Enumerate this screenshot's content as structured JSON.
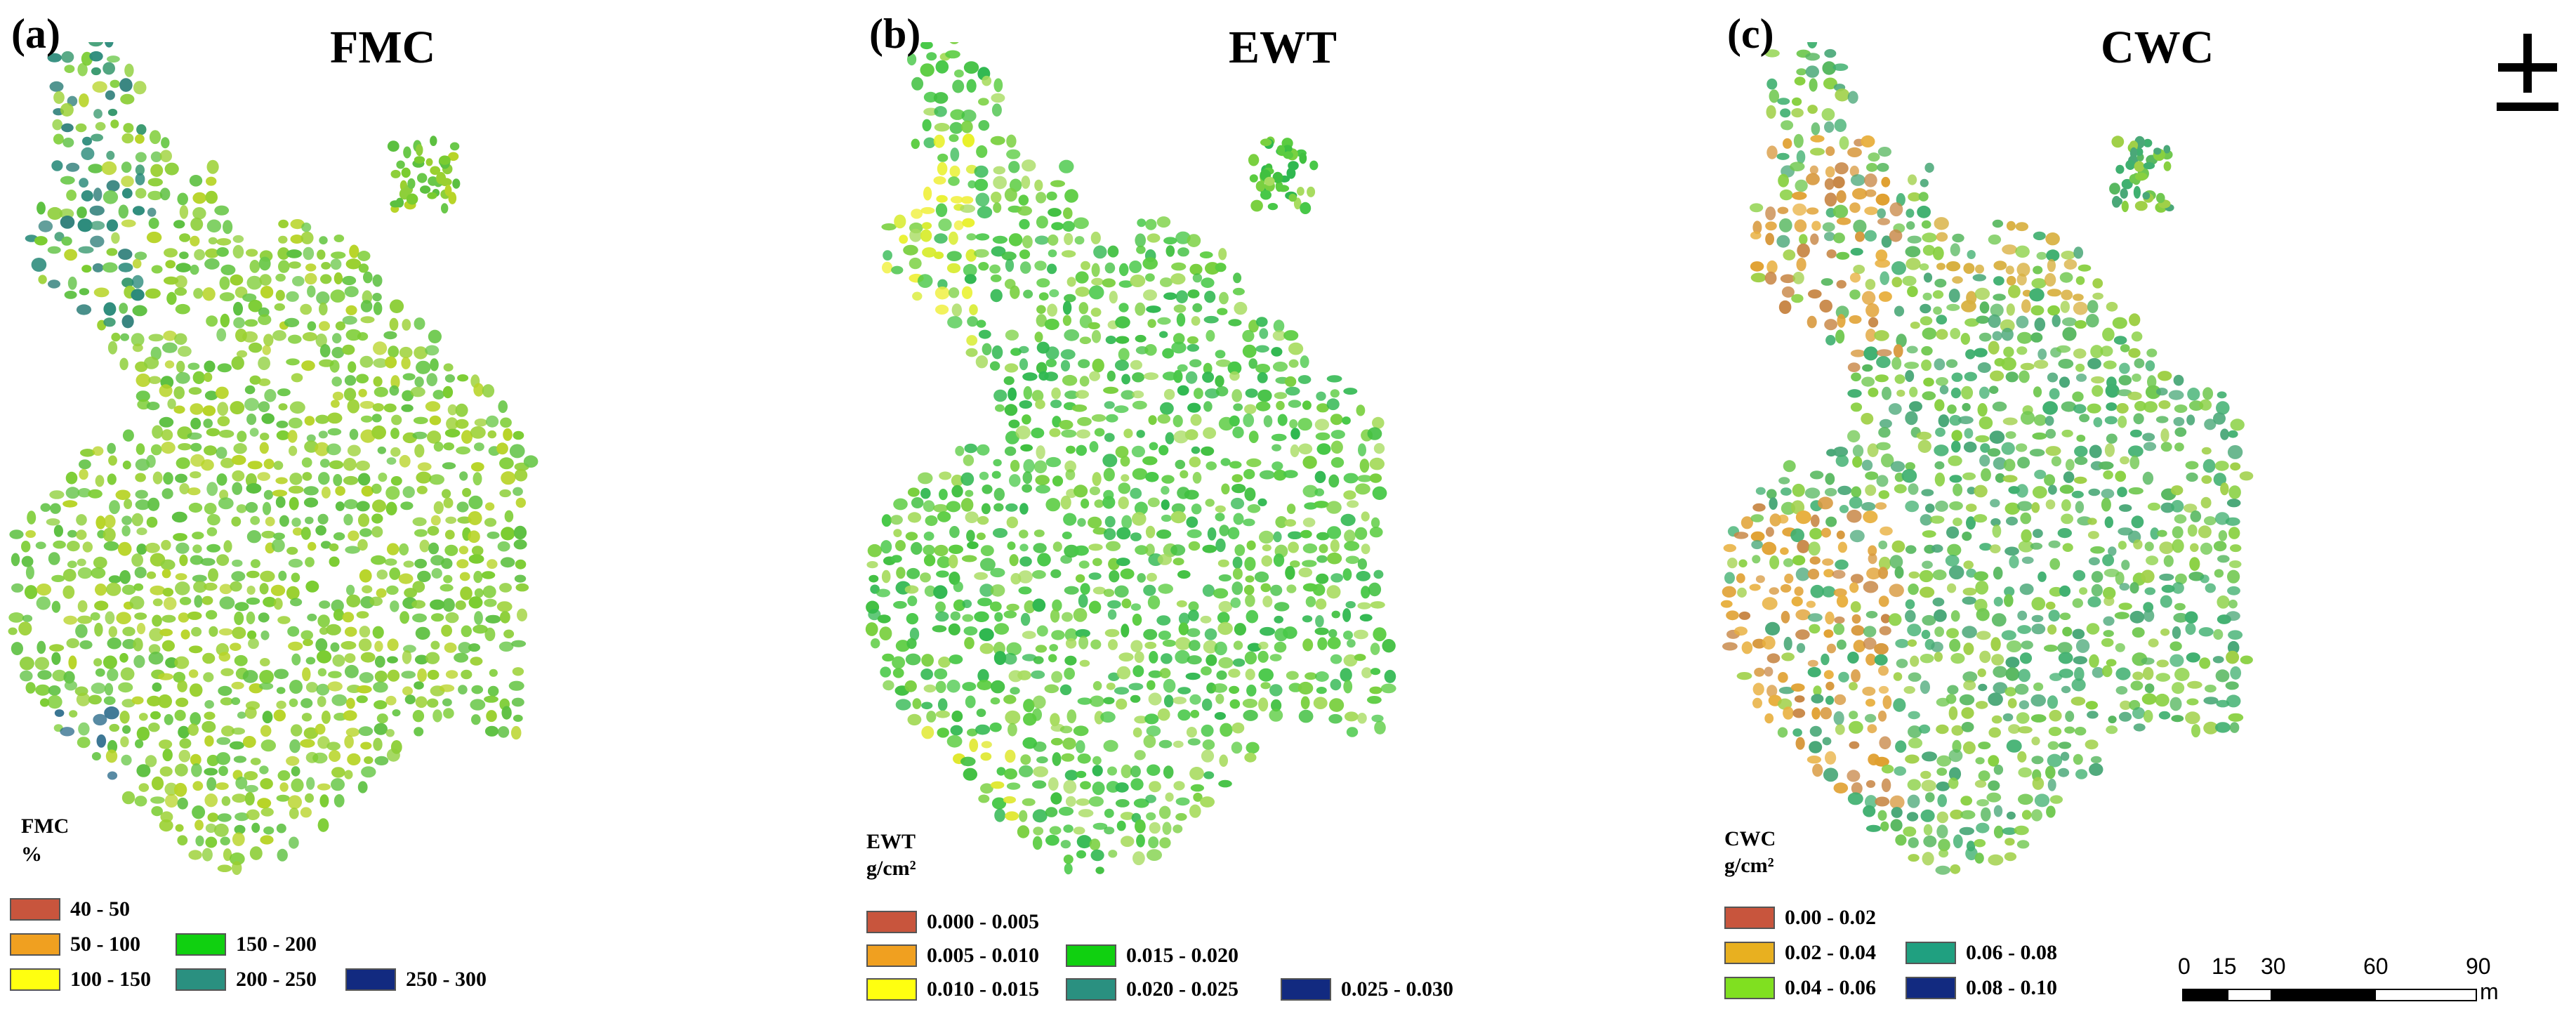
{
  "panels": [
    {
      "letter": "(a)",
      "title": "FMC",
      "legend_title": "FMC",
      "legend_unit": "%",
      "legend": [
        {
          "label": "40 - 50",
          "color": "#c8553d"
        },
        {
          "label": "50 - 100",
          "color": "#f0a020"
        },
        {
          "label": "100 - 150",
          "color": "#ffff10"
        },
        {
          "label": "150 - 200",
          "color": "#10d010"
        },
        {
          "label": "200 - 250",
          "color": "#2a9080"
        },
        {
          "label": "250 - 300",
          "color": "#122a80"
        }
      ]
    },
    {
      "letter": "(b)",
      "title": "EWT",
      "legend_title": "EWT",
      "legend_unit": "g/cm²",
      "legend": [
        {
          "label": "0.000 - 0.005",
          "color": "#c8553d"
        },
        {
          "label": "0.005 - 0.010",
          "color": "#f0a020"
        },
        {
          "label": "0.010 - 0.015",
          "color": "#ffff10"
        },
        {
          "label": "0.015 - 0.020",
          "color": "#10d010"
        },
        {
          "label": "0.020 - 0.025",
          "color": "#2a9080"
        },
        {
          "label": "0.025 - 0.030",
          "color": "#122a80"
        }
      ]
    },
    {
      "letter": "(c)",
      "title": "CWC",
      "legend_title": "CWC",
      "legend_unit": "g/cm²",
      "legend": [
        {
          "label": "0.00 - 0.02",
          "color": "#c8553d"
        },
        {
          "label": "0.02 - 0.04",
          "color": "#e8b020"
        },
        {
          "label": "0.04 - 0.06",
          "color": "#80e020"
        },
        {
          "label": "0.06 - 0.08",
          "color": "#20a080"
        },
        {
          "label": "0.08 - 0.10",
          "color": "#122a80"
        }
      ]
    }
  ],
  "scale_bar": {
    "ticks": [
      "0",
      "15",
      "30",
      "60",
      "90"
    ],
    "tick_values": [
      0,
      15,
      30,
      60,
      90
    ],
    "unit": "m"
  },
  "north_arrow": {
    "icon": "north-arrow-icon"
  }
}
